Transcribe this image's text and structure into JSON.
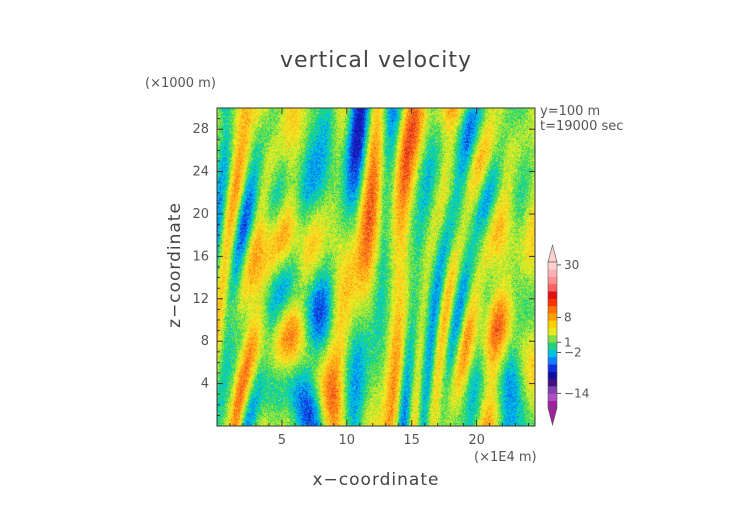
{
  "chart_data": {
    "type": "heatmap",
    "title": "vertical velocity",
    "xlabel": "x−coordinate",
    "ylabel": "z−coordinate",
    "x_unit": "(×1E4 m)",
    "y_unit": "(×1000 m)",
    "annotations": [
      "y=100  m",
      "t=19000  sec"
    ],
    "x_ticks": [
      5,
      10,
      15,
      20
    ],
    "y_ticks": [
      4,
      8,
      12,
      16,
      20,
      24,
      28
    ],
    "xlim": [
      0,
      24.5
    ],
    "ylim": [
      0,
      30
    ],
    "colorbar": {
      "labels": [
        "30",
        "8",
        "1",
        "−2",
        "−14"
      ],
      "label_values": [
        30,
        8,
        1,
        -2,
        -14
      ],
      "colors": [
        "#a020a0",
        "#b050c0",
        "#8040b0",
        "#401080",
        "#1010a0",
        "#1030e0",
        "#1080ff",
        "#00c0e0",
        "#20d080",
        "#80e040",
        "#e8e820",
        "#ffd000",
        "#ffa000",
        "#ff7000",
        "#ff3000",
        "#e01010",
        "#ff6060",
        "#ff9090",
        "#ffb0b0",
        "#ffd0d0"
      ],
      "extend": "both"
    }
  }
}
